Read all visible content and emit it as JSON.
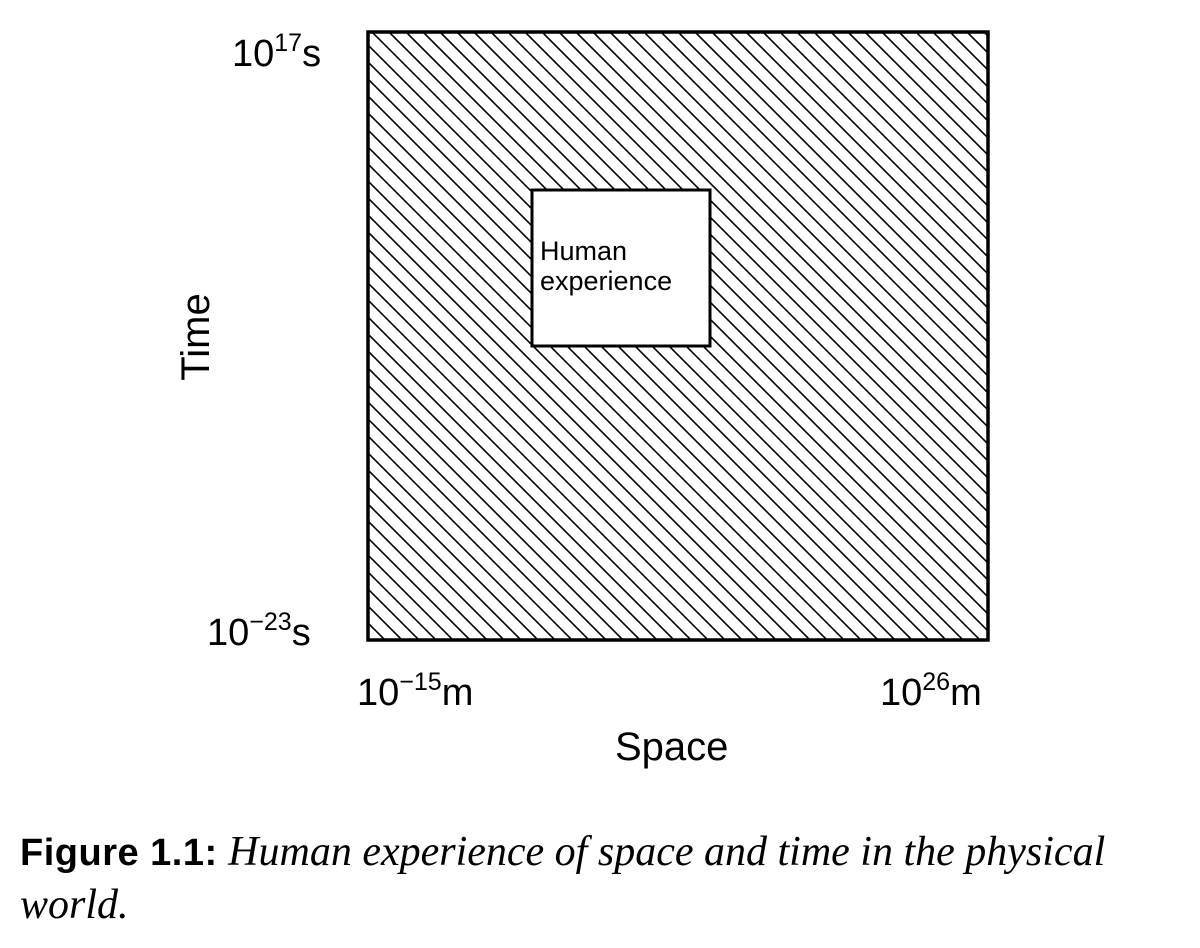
{
  "diagram": {
    "axes": {
      "y_title": "Time",
      "x_title": "Space",
      "y_top": {
        "base": "10",
        "exp": "17",
        "unit": "s"
      },
      "y_bottom": {
        "base": "10",
        "exp": "−23",
        "unit": "s"
      },
      "x_left": {
        "base": "10",
        "exp": "−15",
        "unit": "m"
      },
      "x_right": {
        "base": "10",
        "exp": "26",
        "unit": "m"
      }
    },
    "region_label_line1": "Human",
    "region_label_line2": "experience"
  },
  "caption": {
    "label": "Figure 1.1:",
    "text": "Human experience of space and time in the physical world."
  }
}
